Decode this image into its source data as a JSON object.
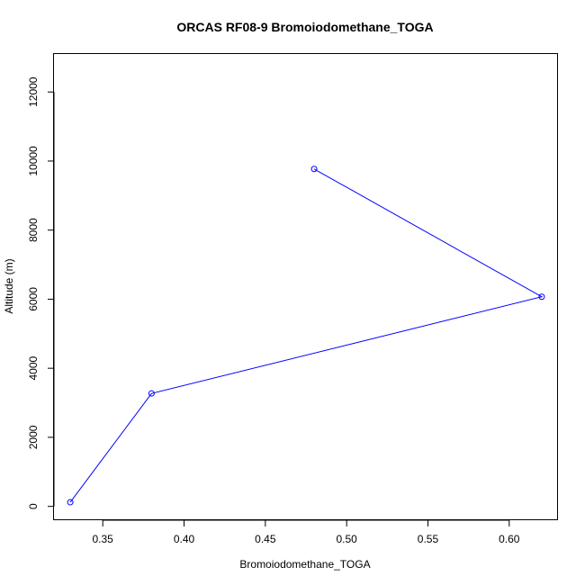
{
  "chart_data": {
    "type": "line",
    "title": "ORCAS RF08-9 Bromoiodomethane_TOGA",
    "xlabel": "Bromoiodomethane_TOGA",
    "ylabel": "Altitude (m)",
    "xlim": [
      0.32,
      0.63
    ],
    "ylim": [
      -400,
      13100
    ],
    "xticks": [
      0.35,
      0.4,
      0.45,
      0.5,
      0.55,
      0.6
    ],
    "xtick_labels": [
      "0.35",
      "0.40",
      "0.45",
      "0.50",
      "0.55",
      "0.60"
    ],
    "yticks": [
      0,
      2000,
      4000,
      6000,
      8000,
      10000,
      12000
    ],
    "ytick_labels": [
      "0",
      "2000",
      "4000",
      "6000",
      "8000",
      "10000",
      "12000"
    ],
    "series": [
      {
        "color": "#0000ff",
        "x": [
          0.33,
          0.38,
          0.62,
          0.48
        ],
        "y": [
          120,
          3270,
          6070,
          9770
        ]
      }
    ],
    "grid": false,
    "markers": "open-circle"
  }
}
